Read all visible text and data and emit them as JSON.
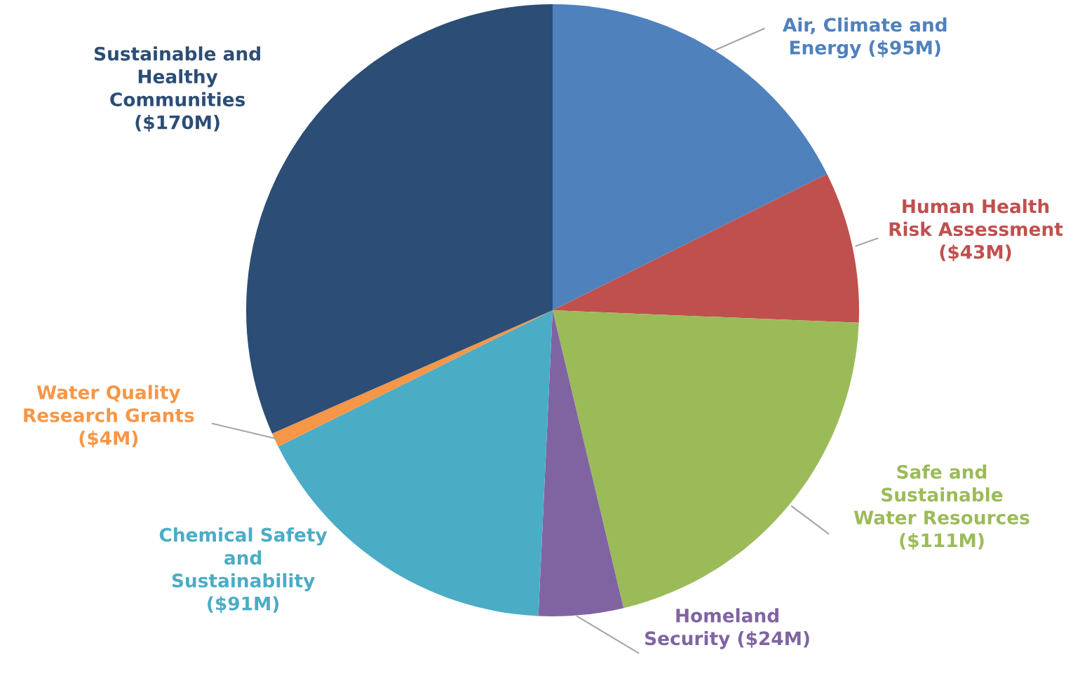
{
  "chart_data": {
    "type": "pie",
    "categories": [
      "Air, Climate and\nEnergy ($95M)",
      "Human Health\nRisk Assessment\n($43M)",
      "Safe and\nSustainable\nWater Resources\n($111M)",
      "Homeland\nSecurity ($24M)",
      "Chemical Safety\nand\nSustainability\n($91M)",
      "Water Quality\nResearch Grants\n($4M)",
      "Sustainable and\nHealthy\nCommunities\n($170M)"
    ],
    "values": [
      95,
      43,
      111,
      24,
      91,
      4,
      170
    ],
    "colors": [
      "#4f81bd",
      "#c0504d",
      "#9bbb59",
      "#8064a2",
      "#4bacc6",
      "#f79646",
      "#2c4d75"
    ],
    "legend": false
  }
}
